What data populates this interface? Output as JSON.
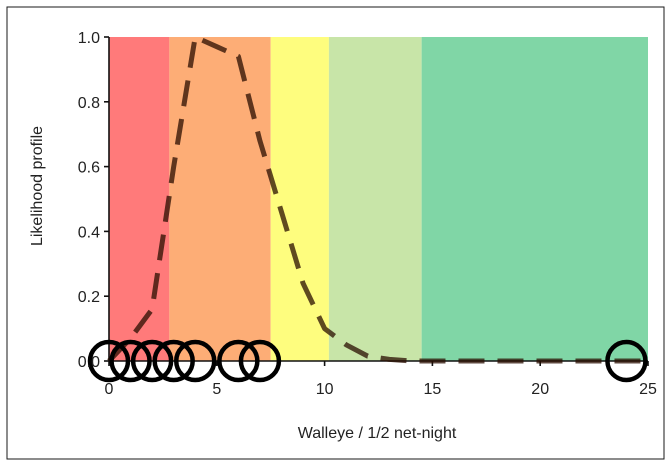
{
  "chart_data": {
    "type": "line",
    "title": "",
    "xlabel": "Walleye / 1/2 net-night",
    "ylabel": "Likelihood profile",
    "xlim": [
      0,
      25
    ],
    "ylim": [
      0,
      1
    ],
    "x_ticks": [
      "0",
      "5",
      "10",
      "15",
      "20",
      "25"
    ],
    "y_ticks": [
      "0.0",
      "0.2",
      "0.4",
      "0.6",
      "0.8",
      "1.0"
    ],
    "grid": false,
    "legend": "none",
    "bands": [
      {
        "from": 0,
        "to": 2.8,
        "color": "#ff7a7a"
      },
      {
        "from": 2.8,
        "to": 7.5,
        "color": "#fdad76"
      },
      {
        "from": 7.5,
        "to": 10.2,
        "color": "#fefd7e"
      },
      {
        "from": 10.2,
        "to": 14.5,
        "color": "#c8e5a8"
      },
      {
        "from": 14.5,
        "to": 25,
        "color": "#80d6a6"
      }
    ],
    "series": [
      {
        "line_color": "#2a0e00",
        "line_opacity": 0.75,
        "x": [
          0,
          1,
          2,
          3,
          4,
          5,
          6,
          7,
          8,
          9,
          10,
          11,
          12,
          13,
          14,
          15,
          16,
          17,
          18,
          19,
          20,
          21,
          22,
          23,
          24,
          25
        ],
        "y": [
          0.0,
          0.07,
          0.16,
          0.6,
          1.0,
          0.97,
          0.94,
          0.68,
          0.46,
          0.24,
          0.1,
          0.05,
          0.015,
          0.005,
          0.0,
          0.0,
          0.0,
          0.0,
          0.0,
          0.0,
          0.0,
          0.0,
          0.0,
          0.0,
          0.0,
          0.0
        ]
      }
    ],
    "observations": {
      "marker": "open-circle",
      "color": "#000000",
      "x": [
        0,
        1,
        2,
        3,
        4,
        6,
        7,
        24
      ],
      "y": [
        0,
        0,
        0,
        0,
        0,
        0,
        0,
        0
      ]
    }
  }
}
